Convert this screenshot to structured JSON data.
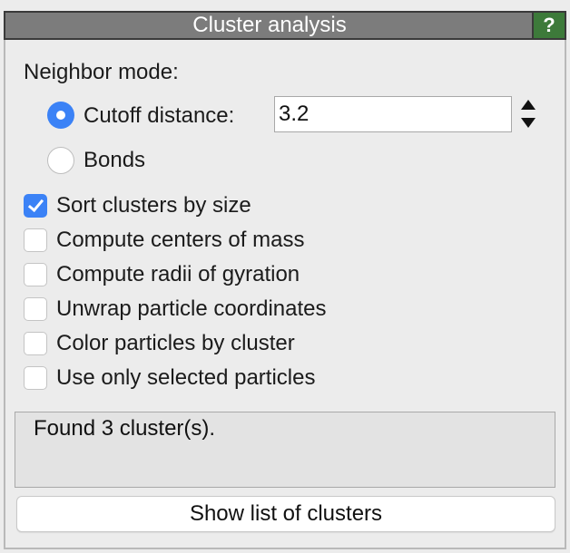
{
  "titlebar": {
    "title": "Cluster analysis",
    "help_label": "?",
    "title_bg": "#7c7c7c",
    "help_bg": "#3d7a3a"
  },
  "neighbor_mode": {
    "label": "Neighbor mode:",
    "options": [
      {
        "label": "Cutoff distance:",
        "selected": true
      },
      {
        "label": "Bonds",
        "selected": false
      }
    ],
    "cutoff_value": "3.2"
  },
  "checkboxes": [
    {
      "label": "Sort clusters by size",
      "checked": true
    },
    {
      "label": "Compute centers of mass",
      "checked": false
    },
    {
      "label": "Compute radii of gyration",
      "checked": false
    },
    {
      "label": "Unwrap particle coordinates",
      "checked": false
    },
    {
      "label": "Color particles by cluster",
      "checked": false
    },
    {
      "label": "Use only selected particles",
      "checked": false
    }
  ],
  "status": {
    "text": "Found 3 cluster(s)."
  },
  "actions": {
    "show_list_label": "Show list of clusters"
  },
  "colors": {
    "accent": "#3b82f6"
  }
}
